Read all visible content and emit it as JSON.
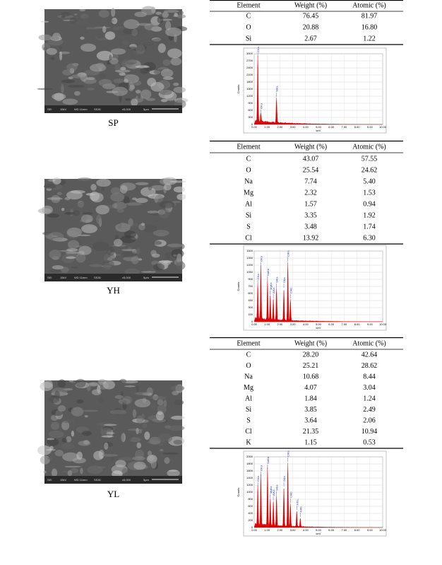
{
  "panels": [
    {
      "label": "SP",
      "sem_bar": [
        "SEI",
        "15kV",
        "WD 11mm",
        "SS30",
        "x5,000",
        "5μm"
      ],
      "table": {
        "header": [
          "Element",
          "Weight (%)",
          "Atomic (%)"
        ],
        "rows": [
          [
            "C",
            "76.45",
            "81.97"
          ],
          [
            "O",
            "20.88",
            "16.80"
          ],
          [
            "Si",
            "2.67",
            "1.22"
          ]
        ]
      },
      "spectrum": {
        "y_label": "Counts",
        "x_label": "keV",
        "yticks": [
          "0",
          "300",
          "600",
          "900",
          "1200",
          "1500",
          "1800",
          "2100",
          "2400",
          "2700",
          "3000"
        ],
        "xticks": [
          "0.00",
          "1.00",
          "2.00",
          "3.00",
          "4.00",
          "5.00",
          "6.00",
          "7.00",
          "8.00",
          "9.00",
          "10.00"
        ],
        "peaks": [
          "CKa",
          "OKa",
          "SiKa"
        ]
      }
    },
    {
      "label": "YH",
      "sem_bar": [
        "SEI",
        "15kV",
        "WD 11mm",
        "SS30",
        "x5,000",
        "5μm"
      ],
      "table": {
        "header": [
          "Element",
          "Weight (%)",
          "Atomic (%)"
        ],
        "rows": [
          [
            "C",
            "43.07",
            "57.55"
          ],
          [
            "O",
            "25.54",
            "24.62"
          ],
          [
            "Na",
            "7.74",
            "5.40"
          ],
          [
            "Mg",
            "2.32",
            "1.53"
          ],
          [
            "Al",
            "1.57",
            "0.94"
          ],
          [
            "Si",
            "3.35",
            "1.92"
          ],
          [
            "S",
            "3.48",
            "1.74"
          ],
          [
            "Cl",
            "13.92",
            "6.30"
          ]
        ]
      },
      "spectrum": {
        "y_label": "Counts",
        "x_label": "keV",
        "yticks": [
          "0",
          "150",
          "300",
          "450",
          "600",
          "750",
          "900",
          "1050",
          "1200",
          "1350",
          "1500"
        ],
        "xticks": [
          "0.00",
          "1.00",
          "2.00",
          "3.00",
          "4.00",
          "5.00",
          "6.00",
          "7.00",
          "8.00",
          "9.00",
          "10.00"
        ],
        "peaks": [
          "CKa",
          "OKa",
          "NaKa",
          "MgKa",
          "AlKa",
          "SiKa",
          "SKa",
          "ClKa",
          "ClKb"
        ]
      }
    },
    {
      "label": "YL",
      "sem_bar": [
        "SEI",
        "15kV",
        "WD 11mm",
        "SS30",
        "x5,000",
        "5μm"
      ],
      "table": {
        "header": [
          "Element",
          "Weight (%)",
          "Atomic (%)"
        ],
        "rows": [
          [
            "C",
            "28.20",
            "42.64"
          ],
          [
            "O",
            "25.21",
            "28.62"
          ],
          [
            "Na",
            "10.68",
            "8.44"
          ],
          [
            "Mg",
            "4.07",
            "3.04"
          ],
          [
            "Al",
            "1.84",
            "1.24"
          ],
          [
            "Si",
            "3.85",
            "2.49"
          ],
          [
            "S",
            "3.64",
            "2.06"
          ],
          [
            "Cl",
            "21.35",
            "10.94"
          ],
          [
            "K",
            "1.15",
            "0.53"
          ]
        ]
      },
      "spectrum": {
        "y_label": "Counts",
        "x_label": "keV",
        "yticks": [
          "0",
          "200",
          "400",
          "600",
          "800",
          "1000",
          "1200",
          "1400",
          "1600",
          "1800",
          "2000"
        ],
        "xticks": [
          "0.00",
          "1.00",
          "2.00",
          "3.00",
          "4.00",
          "5.00",
          "6.00",
          "7.00",
          "8.00",
          "9.00",
          "10.00"
        ],
        "peaks": [
          "CKa",
          "OKa",
          "NaKa",
          "MgKa",
          "AlKa",
          "SiKa",
          "SKa",
          "ClKa",
          "ClKb",
          "KKa",
          "KKb"
        ]
      }
    }
  ]
}
